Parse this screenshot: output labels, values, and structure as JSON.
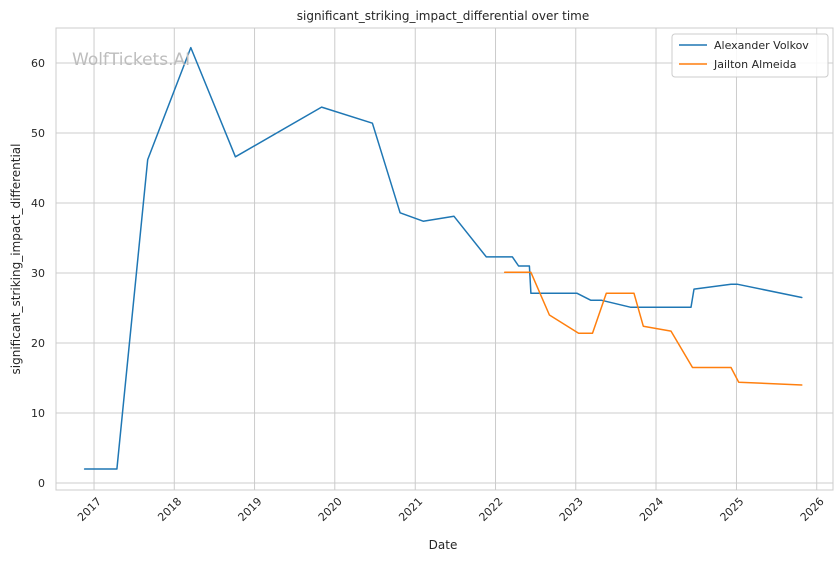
{
  "chart_data": {
    "type": "line",
    "title": "significant_striking_impact_differential over time",
    "xlabel": "Date",
    "ylabel": "significant_striking_impact_differential",
    "watermark": "WolfTickets.AI",
    "x_ticks": [
      "2017",
      "2018",
      "2019",
      "2020",
      "2021",
      "2022",
      "2023",
      "2024",
      "2025",
      "2026"
    ],
    "y_ticks": [
      0,
      10,
      20,
      30,
      40,
      50,
      60
    ],
    "xlim": [
      "2016-07-12",
      "2026-03-16"
    ],
    "ylim": [
      -1,
      65
    ],
    "grid": true,
    "legend_position": "top-right",
    "colors": {
      "axis": "#cccccc",
      "grid": "#cccccc",
      "text": "#262626"
    },
    "series": [
      {
        "name": "Alexander Volkov",
        "color": "#1f77b4",
        "points": [
          [
            "2016-11-19",
            2.0
          ],
          [
            "2017-04-15",
            2.0
          ],
          [
            "2017-09-02",
            46.2
          ],
          [
            "2018-03-17",
            62.2
          ],
          [
            "2018-10-06",
            46.6
          ],
          [
            "2019-11-02",
            53.7
          ],
          [
            "2020-06-20",
            51.4
          ],
          [
            "2020-10-24",
            38.6
          ],
          [
            "2021-02-06",
            37.4
          ],
          [
            "2021-06-26",
            38.1
          ],
          [
            "2021-11-20",
            32.3
          ],
          [
            "2022-03-19",
            32.3
          ],
          [
            "2022-04-16",
            31.0
          ],
          [
            "2022-06-04",
            31.0
          ],
          [
            "2022-06-11",
            27.1
          ],
          [
            "2023-01-07",
            27.1
          ],
          [
            "2023-03-11",
            26.1
          ],
          [
            "2023-04-29",
            26.1
          ],
          [
            "2023-09-09",
            25.1
          ],
          [
            "2024-06-08",
            25.1
          ],
          [
            "2024-06-22",
            27.7
          ],
          [
            "2024-12-07",
            28.4
          ],
          [
            "2025-01-04",
            28.4
          ],
          [
            "2025-10-25",
            26.5
          ]
        ]
      },
      {
        "name": "Jailton Almeida",
        "color": "#ff7f0e",
        "points": [
          [
            "2022-02-12",
            30.1
          ],
          [
            "2022-06-11",
            30.1
          ],
          [
            "2022-09-03",
            24.0
          ],
          [
            "2023-01-14",
            21.4
          ],
          [
            "2023-03-18",
            21.4
          ],
          [
            "2023-05-20",
            27.1
          ],
          [
            "2023-09-23",
            27.1
          ],
          [
            "2023-11-04",
            22.4
          ],
          [
            "2024-03-09",
            21.7
          ],
          [
            "2024-06-15",
            16.5
          ],
          [
            "2024-12-07",
            16.5
          ],
          [
            "2025-01-11",
            14.4
          ],
          [
            "2025-10-25",
            14.0
          ]
        ]
      }
    ]
  }
}
